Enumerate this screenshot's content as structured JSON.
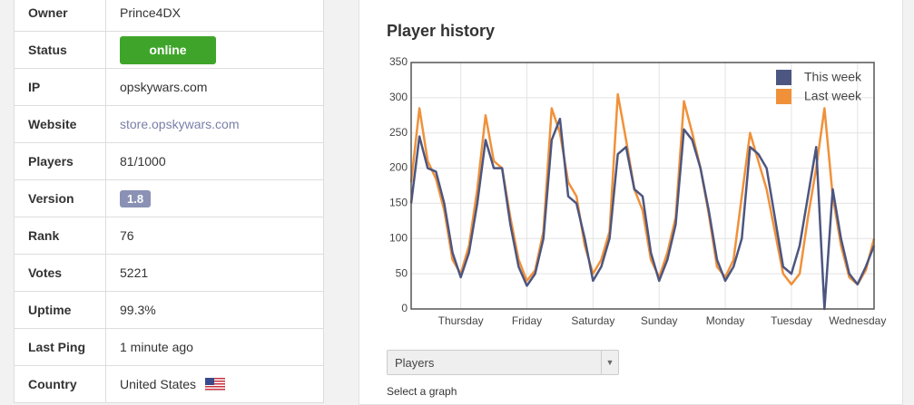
{
  "table": {
    "rows": [
      {
        "label": "Owner",
        "value": "Prince4DX"
      },
      {
        "label": "Status",
        "value": "online"
      },
      {
        "label": "IP",
        "value": "opskywars.com"
      },
      {
        "label": "Website",
        "value": "store.opskywars.com"
      },
      {
        "label": "Players",
        "value": "81/1000"
      },
      {
        "label": "Version",
        "value": "1.8"
      },
      {
        "label": "Rank",
        "value": "76"
      },
      {
        "label": "Votes",
        "value": "5221"
      },
      {
        "label": "Uptime",
        "value": "99.3%"
      },
      {
        "label": "Last Ping",
        "value": "1 minute ago"
      },
      {
        "label": "Country",
        "value": "United States"
      }
    ]
  },
  "graph_select": {
    "value": "Players",
    "hint": "Select a graph"
  },
  "chart_data": {
    "type": "line",
    "title": "Player history",
    "x": [
      0,
      3,
      6,
      9,
      12,
      15,
      18,
      21,
      24,
      27,
      30,
      33,
      36,
      39,
      42,
      45,
      48,
      51,
      54,
      57,
      60,
      63,
      66,
      69,
      72,
      75,
      78,
      81,
      84,
      87,
      90,
      93,
      96,
      99,
      102,
      105,
      108,
      111,
      114,
      117,
      120,
      123,
      126,
      129,
      132,
      135,
      138,
      141,
      144,
      147,
      150,
      153,
      156,
      159,
      162,
      165,
      168
    ],
    "xlim": [
      0,
      168
    ],
    "xticks": [
      {
        "value": 18,
        "label": "Thursday"
      },
      {
        "value": 42,
        "label": "Friday"
      },
      {
        "value": 66,
        "label": "Saturday"
      },
      {
        "value": 90,
        "label": "Sunday"
      },
      {
        "value": 114,
        "label": "Monday"
      },
      {
        "value": 138,
        "label": "Tuesday"
      },
      {
        "value": 162,
        "label": "Wednesday"
      }
    ],
    "ylim": [
      0,
      350
    ],
    "yticks": [
      0,
      50,
      100,
      150,
      200,
      250,
      300,
      350
    ],
    "grid": true,
    "legend": "top-right",
    "series": [
      {
        "name": "This week",
        "color": "#4c5680",
        "values": [
          150,
          245,
          200,
          195,
          150,
          80,
          45,
          80,
          150,
          240,
          200,
          200,
          120,
          60,
          33,
          50,
          100,
          240,
          270,
          160,
          150,
          100,
          40,
          60,
          100,
          220,
          230,
          170,
          160,
          80,
          40,
          70,
          120,
          255,
          240,
          200,
          140,
          70,
          40,
          60,
          100,
          230,
          220,
          200,
          130,
          60,
          50,
          90,
          160,
          230,
          0,
          170,
          100,
          50,
          35,
          60,
          90
        ]
      },
      {
        "name": "Last week",
        "color": "#f0913a",
        "values": [
          180,
          285,
          210,
          185,
          140,
          70,
          50,
          90,
          170,
          275,
          210,
          200,
          130,
          70,
          40,
          55,
          110,
          285,
          250,
          180,
          160,
          90,
          50,
          70,
          110,
          305,
          240,
          170,
          140,
          70,
          45,
          80,
          130,
          295,
          250,
          200,
          135,
          60,
          45,
          70,
          160,
          250,
          210,
          170,
          110,
          50,
          35,
          50,
          130,
          200,
          285,
          160,
          90,
          45,
          35,
          55,
          100
        ]
      }
    ]
  }
}
